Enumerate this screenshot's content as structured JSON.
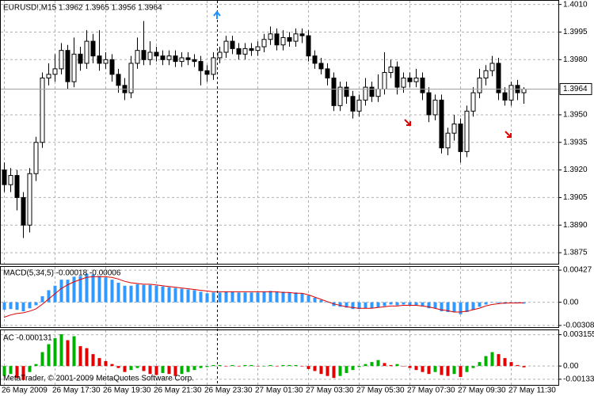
{
  "chart_data": [
    {
      "type": "candlestick",
      "title": "EURUSD!,M15  1.3962 1.3965 1.3956 1.3964",
      "categories": [
        "26 May 2009",
        null,
        null,
        null,
        null,
        null,
        null,
        null,
        "26 May 17:30",
        null,
        null,
        null,
        null,
        null,
        null,
        null,
        "26 May 19:30",
        null,
        null,
        null,
        null,
        null,
        null,
        null,
        "26 May 21:30",
        null,
        null,
        null,
        null,
        null,
        null,
        null,
        "26 May 23:30",
        null,
        null,
        null,
        null,
        null,
        null,
        null,
        "27 May 01:30",
        null,
        null,
        null,
        null,
        null,
        null,
        null,
        "27 May 03:30",
        null,
        null,
        null,
        null,
        null,
        null,
        null,
        "27 May 05:30",
        null,
        null,
        null,
        null,
        null,
        null,
        null,
        "27 May 07:30",
        null,
        null,
        null,
        null,
        null,
        null,
        null,
        "27 May 09:30",
        null,
        null,
        null,
        null,
        null,
        null,
        null,
        "27 May 11:30",
        null,
        null
      ],
      "open": [
        1.392,
        1.3912,
        1.3917,
        1.3905,
        1.389,
        1.3918,
        1.3935,
        1.397,
        1.3972,
        1.3975,
        1.3985,
        1.3968,
        1.3983,
        1.3978,
        1.399,
        1.3982,
        1.3978,
        1.398,
        1.3972,
        1.3966,
        1.3962,
        1.3978,
        1.3985,
        1.398,
        1.3984,
        1.3982,
        1.398,
        1.3982,
        1.3979,
        1.3981,
        1.398,
        1.3979,
        1.3974,
        1.3972,
        1.3981,
        1.3984,
        1.399,
        1.3986,
        1.3983,
        1.3986,
        1.3985,
        1.3987,
        1.3991,
        1.3994,
        1.3988,
        1.3992,
        1.399,
        1.3994,
        1.3993,
        1.3982,
        1.3978,
        1.3975,
        1.397,
        1.3955,
        1.3965,
        1.396,
        1.3952,
        1.3958,
        1.3965,
        1.396,
        1.3964,
        1.3973,
        1.3976,
        1.3965,
        1.397,
        1.3968,
        1.397,
        1.3962,
        1.395,
        1.3958,
        1.3932,
        1.394,
        1.3945,
        1.393,
        1.3952,
        1.3962,
        1.397,
        1.3974,
        1.3978,
        1.3962,
        1.3958,
        1.3966,
        1.3962
      ],
      "high": [
        1.3924,
        1.3921,
        1.392,
        1.3908,
        1.3921,
        1.3938,
        1.3973,
        1.3978,
        1.3983,
        1.3989,
        1.3988,
        1.3992,
        1.3987,
        1.3996,
        1.3994,
        1.3996,
        1.3984,
        1.3983,
        1.3975,
        1.397,
        1.3982,
        1.3992,
        1.4001,
        1.399,
        1.3987,
        1.3985,
        1.3985,
        1.3985,
        1.3984,
        1.3984,
        1.3983,
        1.3982,
        1.3977,
        1.3984,
        1.3987,
        1.3993,
        1.3993,
        1.3989,
        1.3989,
        1.3989,
        1.399,
        1.3994,
        1.3998,
        1.3997,
        1.3996,
        1.3995,
        1.3997,
        1.3997,
        1.3996,
        1.3985,
        1.3981,
        1.3978,
        1.3973,
        1.3968,
        1.3968,
        1.3963,
        1.3961,
        1.397,
        1.3968,
        1.3972,
        1.3984,
        1.398,
        1.3979,
        1.3973,
        1.3973,
        1.3975,
        1.3973,
        1.3965,
        1.3961,
        1.3961,
        1.3943,
        1.395,
        1.3948,
        1.3955,
        1.3965,
        1.3975,
        1.3977,
        1.3982,
        1.3981,
        1.3965,
        1.3968,
        1.3969,
        1.3965
      ],
      "low": [
        1.3908,
        1.3908,
        1.3898,
        1.3883,
        1.3886,
        1.3914,
        1.3932,
        1.3966,
        1.3968,
        1.3972,
        1.3964,
        1.3965,
        1.3974,
        1.3975,
        1.3978,
        1.3974,
        1.3975,
        1.3968,
        1.3962,
        1.3958,
        1.3959,
        1.3975,
        1.3977,
        1.3977,
        1.3979,
        1.3977,
        1.3977,
        1.3976,
        1.3976,
        1.3977,
        1.3976,
        1.3966,
        1.3968,
        1.3969,
        1.3978,
        1.3981,
        1.3983,
        1.398,
        1.398,
        1.3982,
        1.3982,
        1.3984,
        1.3988,
        1.3985,
        1.3985,
        1.3987,
        1.3987,
        1.3989,
        1.3979,
        1.3975,
        1.3972,
        1.3966,
        1.3952,
        1.3952,
        1.3956,
        1.3948,
        1.3949,
        1.3955,
        1.3957,
        1.3957,
        1.3961,
        1.397,
        1.3961,
        1.3962,
        1.3965,
        1.3965,
        1.3958,
        1.3946,
        1.3947,
        1.3929,
        1.3928,
        1.3936,
        1.3924,
        1.3927,
        1.3949,
        1.3959,
        1.3966,
        1.3971,
        1.3958,
        1.3955,
        1.3955,
        1.3958,
        1.3956
      ],
      "close": [
        1.3912,
        1.3917,
        1.3905,
        1.389,
        1.3918,
        1.3935,
        1.397,
        1.3972,
        1.3975,
        1.3985,
        1.3968,
        1.3983,
        1.3978,
        1.399,
        1.3982,
        1.3978,
        1.398,
        1.3972,
        1.3966,
        1.3962,
        1.3978,
        1.3985,
        1.398,
        1.3984,
        1.3982,
        1.398,
        1.3982,
        1.3979,
        1.3981,
        1.398,
        1.3979,
        1.3974,
        1.3972,
        1.3981,
        1.3984,
        1.399,
        1.3986,
        1.3983,
        1.3986,
        1.3985,
        1.3987,
        1.3991,
        1.3994,
        1.3988,
        1.3992,
        1.399,
        1.3994,
        1.3993,
        1.3982,
        1.3978,
        1.3975,
        1.397,
        1.3955,
        1.3965,
        1.396,
        1.3952,
        1.3958,
        1.3965,
        1.396,
        1.3964,
        1.3973,
        1.3976,
        1.3965,
        1.397,
        1.3968,
        1.397,
        1.3962,
        1.395,
        1.3958,
        1.3932,
        1.394,
        1.3945,
        1.393,
        1.3952,
        1.3962,
        1.397,
        1.3974,
        1.3978,
        1.3962,
        1.3958,
        1.3966,
        1.3962,
        1.3964
      ],
      "up_color": "#ffffff",
      "down_color": "#000000",
      "current_price": 1.3964,
      "ylim": [
        1.3869,
        1.4012
      ],
      "yticks": [
        {
          "value": 1.401,
          "label": "1.4010"
        },
        1.3995,
        {
          "value": 1.398,
          "label": "1.3980"
        },
        {
          "value": 1.395,
          "label": "1.3950"
        },
        1.3935,
        {
          "value": 1.392,
          "label": "1.3920"
        },
        1.3905,
        {
          "value": 1.389,
          "label": "1.3890"
        },
        1.3875
      ],
      "grid": true
    },
    {
      "type": "bar",
      "title": "MACD(5,34,5) -0.00018 -0.00006",
      "series": [
        {
          "type": "bar",
          "color": "#3399ff",
          "values": [
            -0.001,
            -0.0009,
            -0.001,
            -0.0012,
            -0.0008,
            -0.0004,
            0.0008,
            0.0016,
            0.0022,
            0.003,
            0.003,
            0.0034,
            0.0035,
            0.0038,
            0.0037,
            0.0035,
            0.0033,
            0.003,
            0.0026,
            0.0022,
            0.0022,
            0.0024,
            0.0023,
            0.0023,
            0.0022,
            0.0021,
            0.002,
            0.0019,
            0.0018,
            0.0017,
            0.0016,
            0.0014,
            0.0012,
            0.0013,
            0.0013,
            0.0014,
            0.0014,
            0.0013,
            0.0013,
            0.0013,
            0.0013,
            0.0014,
            0.0015,
            0.0014,
            0.0014,
            0.0013,
            0.0013,
            0.0012,
            0.0009,
            0.0006,
            0.0003,
            0.0,
            -0.0005,
            -0.0006,
            -0.0007,
            -0.0009,
            -0.0009,
            -0.0008,
            -0.0008,
            -0.0007,
            -0.0005,
            -0.0003,
            -0.0004,
            -0.0003,
            -0.0004,
            -0.0004,
            -0.0005,
            -0.0008,
            -0.0008,
            -0.0012,
            -0.0013,
            -0.0013,
            -0.0016,
            -0.0013,
            -0.001,
            -0.0006,
            -0.0003,
            0.0,
            -0.0001,
            -0.0002,
            0.0,
            -0.0001,
            -0.00018
          ]
        },
        {
          "type": "line",
          "color": "#dd0000",
          "values": [
            -0.002,
            -0.0017,
            -0.0015,
            -0.0014,
            -0.0012,
            -0.0009,
            -0.0003,
            0.0004,
            0.0011,
            0.0018,
            0.0023,
            0.0027,
            0.003,
            0.0033,
            0.0034,
            0.0034,
            0.0034,
            0.0033,
            0.0031,
            0.0028,
            0.0026,
            0.0025,
            0.0024,
            0.0024,
            0.0023,
            0.0022,
            0.0021,
            0.002,
            0.0019,
            0.0018,
            0.0017,
            0.0016,
            0.0015,
            0.0014,
            0.0014,
            0.0014,
            0.0014,
            0.0014,
            0.0014,
            0.0014,
            0.0014,
            0.0014,
            0.0014,
            0.0014,
            0.0013,
            0.0013,
            0.0012,
            0.0012,
            0.001,
            0.0007,
            0.0004,
            0.0001,
            -0.0002,
            -0.0004,
            -0.0006,
            -0.0007,
            -0.0008,
            -0.0008,
            -0.0008,
            -0.0007,
            -0.0006,
            -0.0005,
            -0.0005,
            -0.0004,
            -0.0004,
            -0.0004,
            -0.0005,
            -0.0006,
            -0.0008,
            -0.001,
            -0.0011,
            -0.0013,
            -0.0013,
            -0.0012,
            -0.001,
            -0.0008,
            -0.0005,
            -0.0003,
            -0.0002,
            -0.0001,
            -0.0001,
            -0.0001,
            -6e-05
          ]
        }
      ],
      "ylim": [
        -0.0033,
        0.0047
      ],
      "yticks": [
        0.00427,
        {
          "value": 0,
          "label": "0.00"
        },
        -0.00308
      ],
      "grid": true
    },
    {
      "type": "bar",
      "title": "AC -0.000131",
      "values": [
        -0.001,
        -0.0008,
        -0.0012,
        -0.0014,
        -0.0006,
        0.0002,
        0.0014,
        0.0022,
        0.0028,
        0.0032,
        0.0026,
        0.003,
        0.002,
        0.0018,
        0.0012,
        0.0008,
        0.0005,
        0.0002,
        -0.0002,
        -0.0006,
        -0.0004,
        -0.0002,
        -0.0005,
        -0.0008,
        -0.0009,
        -0.0007,
        -0.0008,
        -0.001,
        -0.0008,
        -0.0006,
        -0.0004,
        -0.0002,
        -0.0001,
        0.0001,
        0.0001,
        0.0,
        0.0001,
        0.0,
        0.0001,
        0.0001,
        0.0,
        0.0,
        0.0001,
        0.0,
        0.0001,
        0.0001,
        0.0001,
        0.0,
        -0.0003,
        -0.0005,
        -0.0008,
        -0.001,
        -0.0012,
        -0.001,
        -0.0007,
        -0.0004,
        -0.0001,
        0.0002,
        0.0004,
        0.0006,
        0.0003,
        0.0001,
        0.0002,
        0.0,
        -0.0002,
        -0.0004,
        -0.0006,
        -0.0008,
        -0.0006,
        -0.0009,
        -0.001,
        -0.0008,
        -0.0011,
        -0.0006,
        -0.0002,
        0.0004,
        0.001,
        0.0014,
        0.0012,
        0.0008,
        0.0004,
        0.0001,
        -0.000131
      ],
      "up_color": "#00b000",
      "down_color": "#e00000",
      "ylim": [
        -0.0019,
        0.0036
      ],
      "yticks": [
        0.003155,
        {
          "value": 0,
          "label": "0.00"
        },
        -0.00133
      ],
      "grid": true
    }
  ],
  "footer": "MetaTrader, © 2001-2009 MetaQuotes Software Corp."
}
